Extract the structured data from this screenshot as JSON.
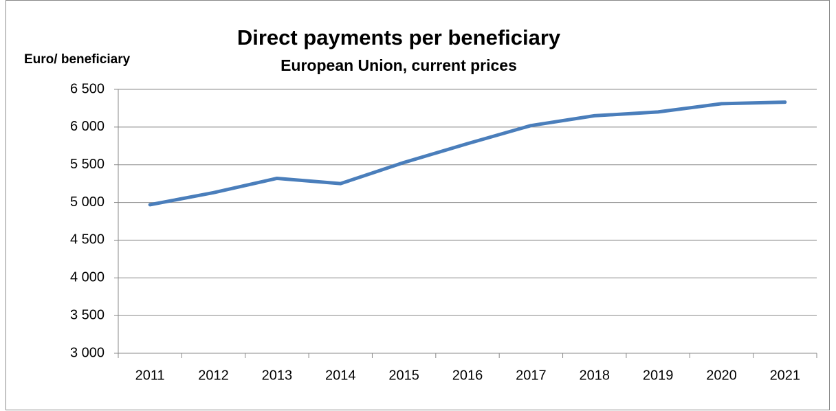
{
  "chart_data": {
    "type": "line",
    "title": "Direct payments per beneficiary",
    "subtitle": "European Union, current prices",
    "y_label": "Euro/ beneficiary",
    "categories": [
      "2011",
      "2012",
      "2013",
      "2014",
      "2015",
      "2016",
      "2017",
      "2018",
      "2019",
      "2020",
      "2021"
    ],
    "series": [
      {
        "name": "Direct payments per beneficiary",
        "color": "#4a7ebb",
        "values": [
          4970,
          5130,
          5320,
          5250,
          5530,
          5780,
          6020,
          6150,
          6200,
          6310,
          6330
        ]
      }
    ],
    "ylim": [
      3000,
      6500
    ],
    "yticks": [
      {
        "value": 3000,
        "label": "3 000"
      },
      {
        "value": 3500,
        "label": "3 500"
      },
      {
        "value": 4000,
        "label": "4 000"
      },
      {
        "value": 4500,
        "label": "4 500"
      },
      {
        "value": 5000,
        "label": "5 000"
      },
      {
        "value": 5500,
        "label": "5 500"
      },
      {
        "value": 6000,
        "label": "6 000"
      },
      {
        "value": 6500,
        "label": "6 500"
      }
    ],
    "grid": true,
    "legend": false
  }
}
